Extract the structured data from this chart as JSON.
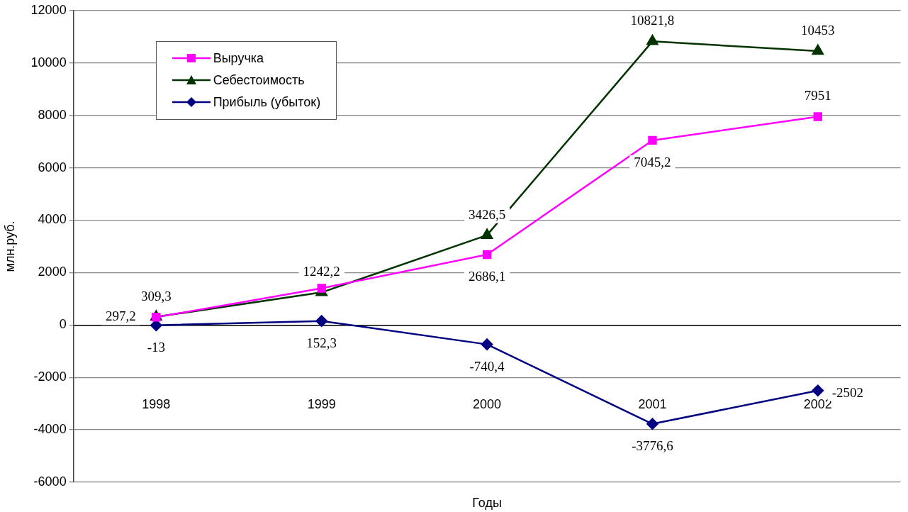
{
  "chart_data": {
    "type": "line",
    "xlabel": "Годы",
    "ylabel": "млн.руб.",
    "categories": [
      "1998",
      "1999",
      "2000",
      "2001",
      "2002"
    ],
    "series": [
      {
        "name": "Выручка",
        "color": "#ff00ff",
        "marker": "square",
        "values": [
          297.2,
          1400,
          2686.1,
          7045.2,
          7951
        ],
        "value_labels": [
          "297,2",
          null,
          "2686,1",
          "7045,2",
          "7951"
        ]
      },
      {
        "name": "Себестоимость",
        "color": "#003300",
        "marker": "triangle",
        "values": [
          309.3,
          1242.2,
          3426.5,
          10821.8,
          10453
        ],
        "value_labels": [
          "309,3",
          "1242,2",
          "3426,5",
          "10821,8",
          "10453"
        ]
      },
      {
        "name": "Прибыль (убыток)",
        "color": "#000080",
        "marker": "diamond",
        "values": [
          -13,
          152.3,
          -740.4,
          -3776.6,
          -2502
        ],
        "value_labels": [
          "-13",
          "152,3",
          "-740,4",
          "-3776,6",
          "-2502"
        ]
      }
    ],
    "ylim": [
      -6000,
      12000
    ],
    "yticks": [
      -6000,
      -4000,
      -2000,
      0,
      2000,
      4000,
      6000,
      8000,
      10000,
      12000
    ],
    "grid": "y",
    "legend": "top left",
    "line_style": "solid"
  }
}
